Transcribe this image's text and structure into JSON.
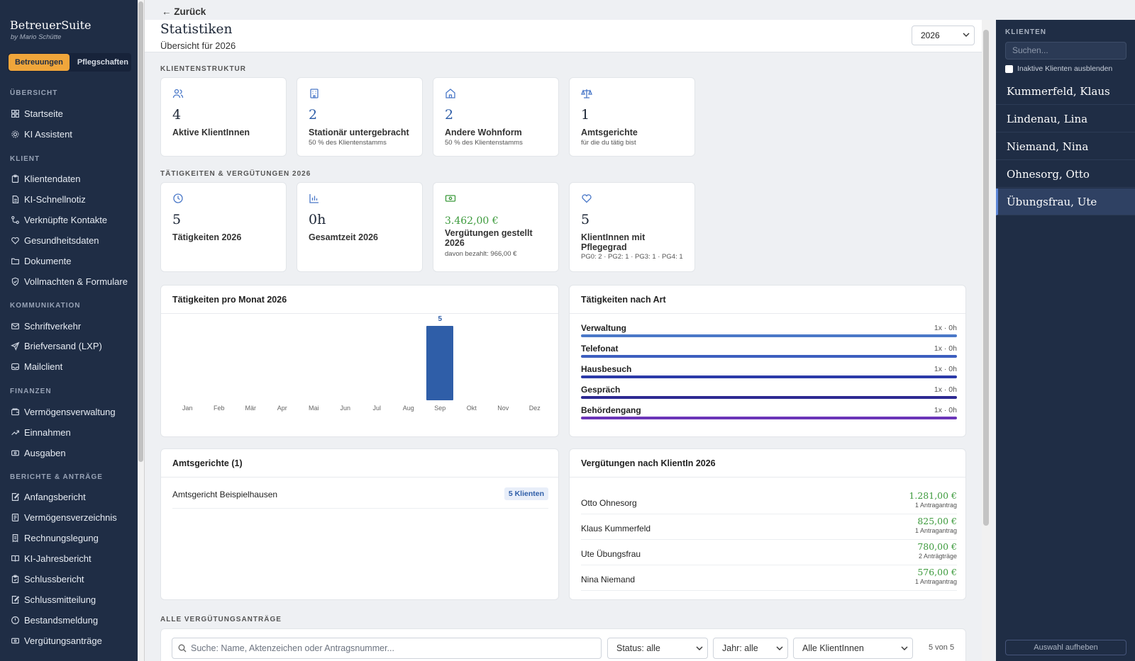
{
  "sidebar": {
    "brand": "BetreuerSuite",
    "brand_sub": "by Mario Schütte",
    "tabs": [
      "Betreuungen",
      "Pflegschaften"
    ],
    "sections": {
      "uebersicht": "ÜBERSICHT",
      "klient": "KLIENT",
      "kommunikation": "KOMMUNIKATION",
      "finanzen": "FINANZEN",
      "berichte": "BERICHTE & ANTRÄGE"
    },
    "items": {
      "startseite": "Startseite",
      "ki_assistent": "KI Assistent",
      "klientendaten": "Klientendaten",
      "ki_schnellnotiz": "KI-Schnellnotiz",
      "kontakte": "Verknüpfte Kontakte",
      "gesundheit": "Gesundheitsdaten",
      "dokumente": "Dokumente",
      "vollmachten": "Vollmachten & Formulare",
      "schriftverkehr": "Schriftverkehr",
      "briefversand": "Briefversand (LXP)",
      "mailclient": "Mailclient",
      "vermoegensverwaltung": "Vermögensverwaltung",
      "einnahmen": "Einnahmen",
      "ausgaben": "Ausgaben",
      "anfangsbericht": "Anfangsbericht",
      "vermoegensverzeichnis": "Vermögensverzeichnis",
      "rechnungslegung": "Rechnungslegung",
      "ki_jahresbericht": "KI-Jahresbericht",
      "schlussbericht": "Schlussbericht",
      "schlussmitteilung": "Schlussmitteilung",
      "bestandsmeldung": "Bestandsmeldung",
      "verguetungsantraege": "Vergütungsanträge"
    }
  },
  "main": {
    "back": "← Zurück",
    "title": "Statistiken",
    "subtitle": "Übersicht für 2026",
    "year_select": "2026",
    "klientenstruktur_label": "KLIENTENSTRUKTUR",
    "klientenstruktur": [
      {
        "num": "4",
        "label": "Aktive KlientInnen",
        "small": ""
      },
      {
        "num": "2",
        "label": "Stationär untergebracht",
        "small": "50 % des Klientenstamms"
      },
      {
        "num": "2",
        "label": "Andere Wohnform",
        "small": "50 % des Klientenstamms"
      },
      {
        "num": "1",
        "label": "Amtsgerichte",
        "small": "für die du tätig bist"
      }
    ],
    "taetigkeiten_label": "TÄTIGKEITEN & VERGÜTUNGEN 2026",
    "taetigkeiten": [
      {
        "num": "5",
        "label": "Tätigkeiten 2026",
        "small": ""
      },
      {
        "num": "0h",
        "label": "Gesamtzeit 2026",
        "small": ""
      },
      {
        "num": "3.462,00 €",
        "label": "Vergütungen gestellt 2026",
        "small": "davon bezahlt: 966,00 €"
      },
      {
        "num": "5",
        "label": "KlientInnen mit Pflegegrad",
        "small": "PG0: 2 · PG2: 1 · PG3: 1 · PG4: 1"
      }
    ],
    "monthly_title": "Tätigkeiten pro Monat 2026",
    "art_title": "Tätigkeiten nach Art",
    "art": [
      {
        "name": "Verwaltung",
        "value": "1x · 0h",
        "color": "#4a78c8"
      },
      {
        "name": "Telefonat",
        "value": "1x · 0h",
        "color": "#3d5fbf"
      },
      {
        "name": "Hausbesuch",
        "value": "1x · 0h",
        "color": "#2b3aa8"
      },
      {
        "name": "Gespräch",
        "value": "1x · 0h",
        "color": "#2e2a92"
      },
      {
        "name": "Behördengang",
        "value": "1x · 0h",
        "color": "#6b35b8"
      }
    ],
    "gerichte_title": "Amtsgerichte (1)",
    "gerichte": [
      {
        "name": "Amtsgericht Beispielhausen",
        "badge": "5 Klienten"
      }
    ],
    "verg_title": "Vergütungen nach KlientIn 2026",
    "verg": [
      {
        "name": "Otto Ohnesorg",
        "amount": "1.281,00 €",
        "count": "1 Antragantrag"
      },
      {
        "name": "Klaus Kummerfeld",
        "amount": "825,00 €",
        "count": "1 Antragantrag"
      },
      {
        "name": "Ute Übungsfrau",
        "amount": "780,00 €",
        "count": "2 Anträgträge"
      },
      {
        "name": "Nina Niemand",
        "amount": "576,00 €",
        "count": "1 Antragantrag"
      }
    ],
    "alle_label": "ALLE VERGÜTUNGSANTRÄGE",
    "search_placeholder": "Suche: Name, Aktenzeichen oder Antragsnummer...",
    "status_select": "Status: alle",
    "jahr_select": "Jahr: alle",
    "klient_select": "Alle KlientInnen",
    "count": "5 von 5"
  },
  "chart_data": {
    "type": "bar",
    "title": "Tätigkeiten pro Monat 2026",
    "categories": [
      "Jan",
      "Feb",
      "Mär",
      "Apr",
      "Mai",
      "Jun",
      "Jul",
      "Aug",
      "Sep",
      "Okt",
      "Nov",
      "Dez"
    ],
    "values": [
      0,
      0,
      0,
      0,
      0,
      0,
      0,
      0,
      5,
      0,
      0,
      0
    ],
    "data_labels": [
      "",
      "",
      "",
      "",
      "",
      "",
      "",
      "",
      "5",
      "",
      "",
      ""
    ],
    "ylim": [
      0,
      5
    ],
    "bar_color": "#2f5ea8",
    "grid": false
  },
  "right": {
    "label": "KLIENTEN",
    "search_placeholder": "Suchen...",
    "checkbox": "Inaktive Klienten ausblenden",
    "clients": [
      "Kummerfeld, Klaus",
      "Lindenau, Lina",
      "Niemand, Nina",
      "Ohnesorg, Otto",
      "Übungsfrau, Ute"
    ],
    "clear": "Auswahl aufheben"
  }
}
